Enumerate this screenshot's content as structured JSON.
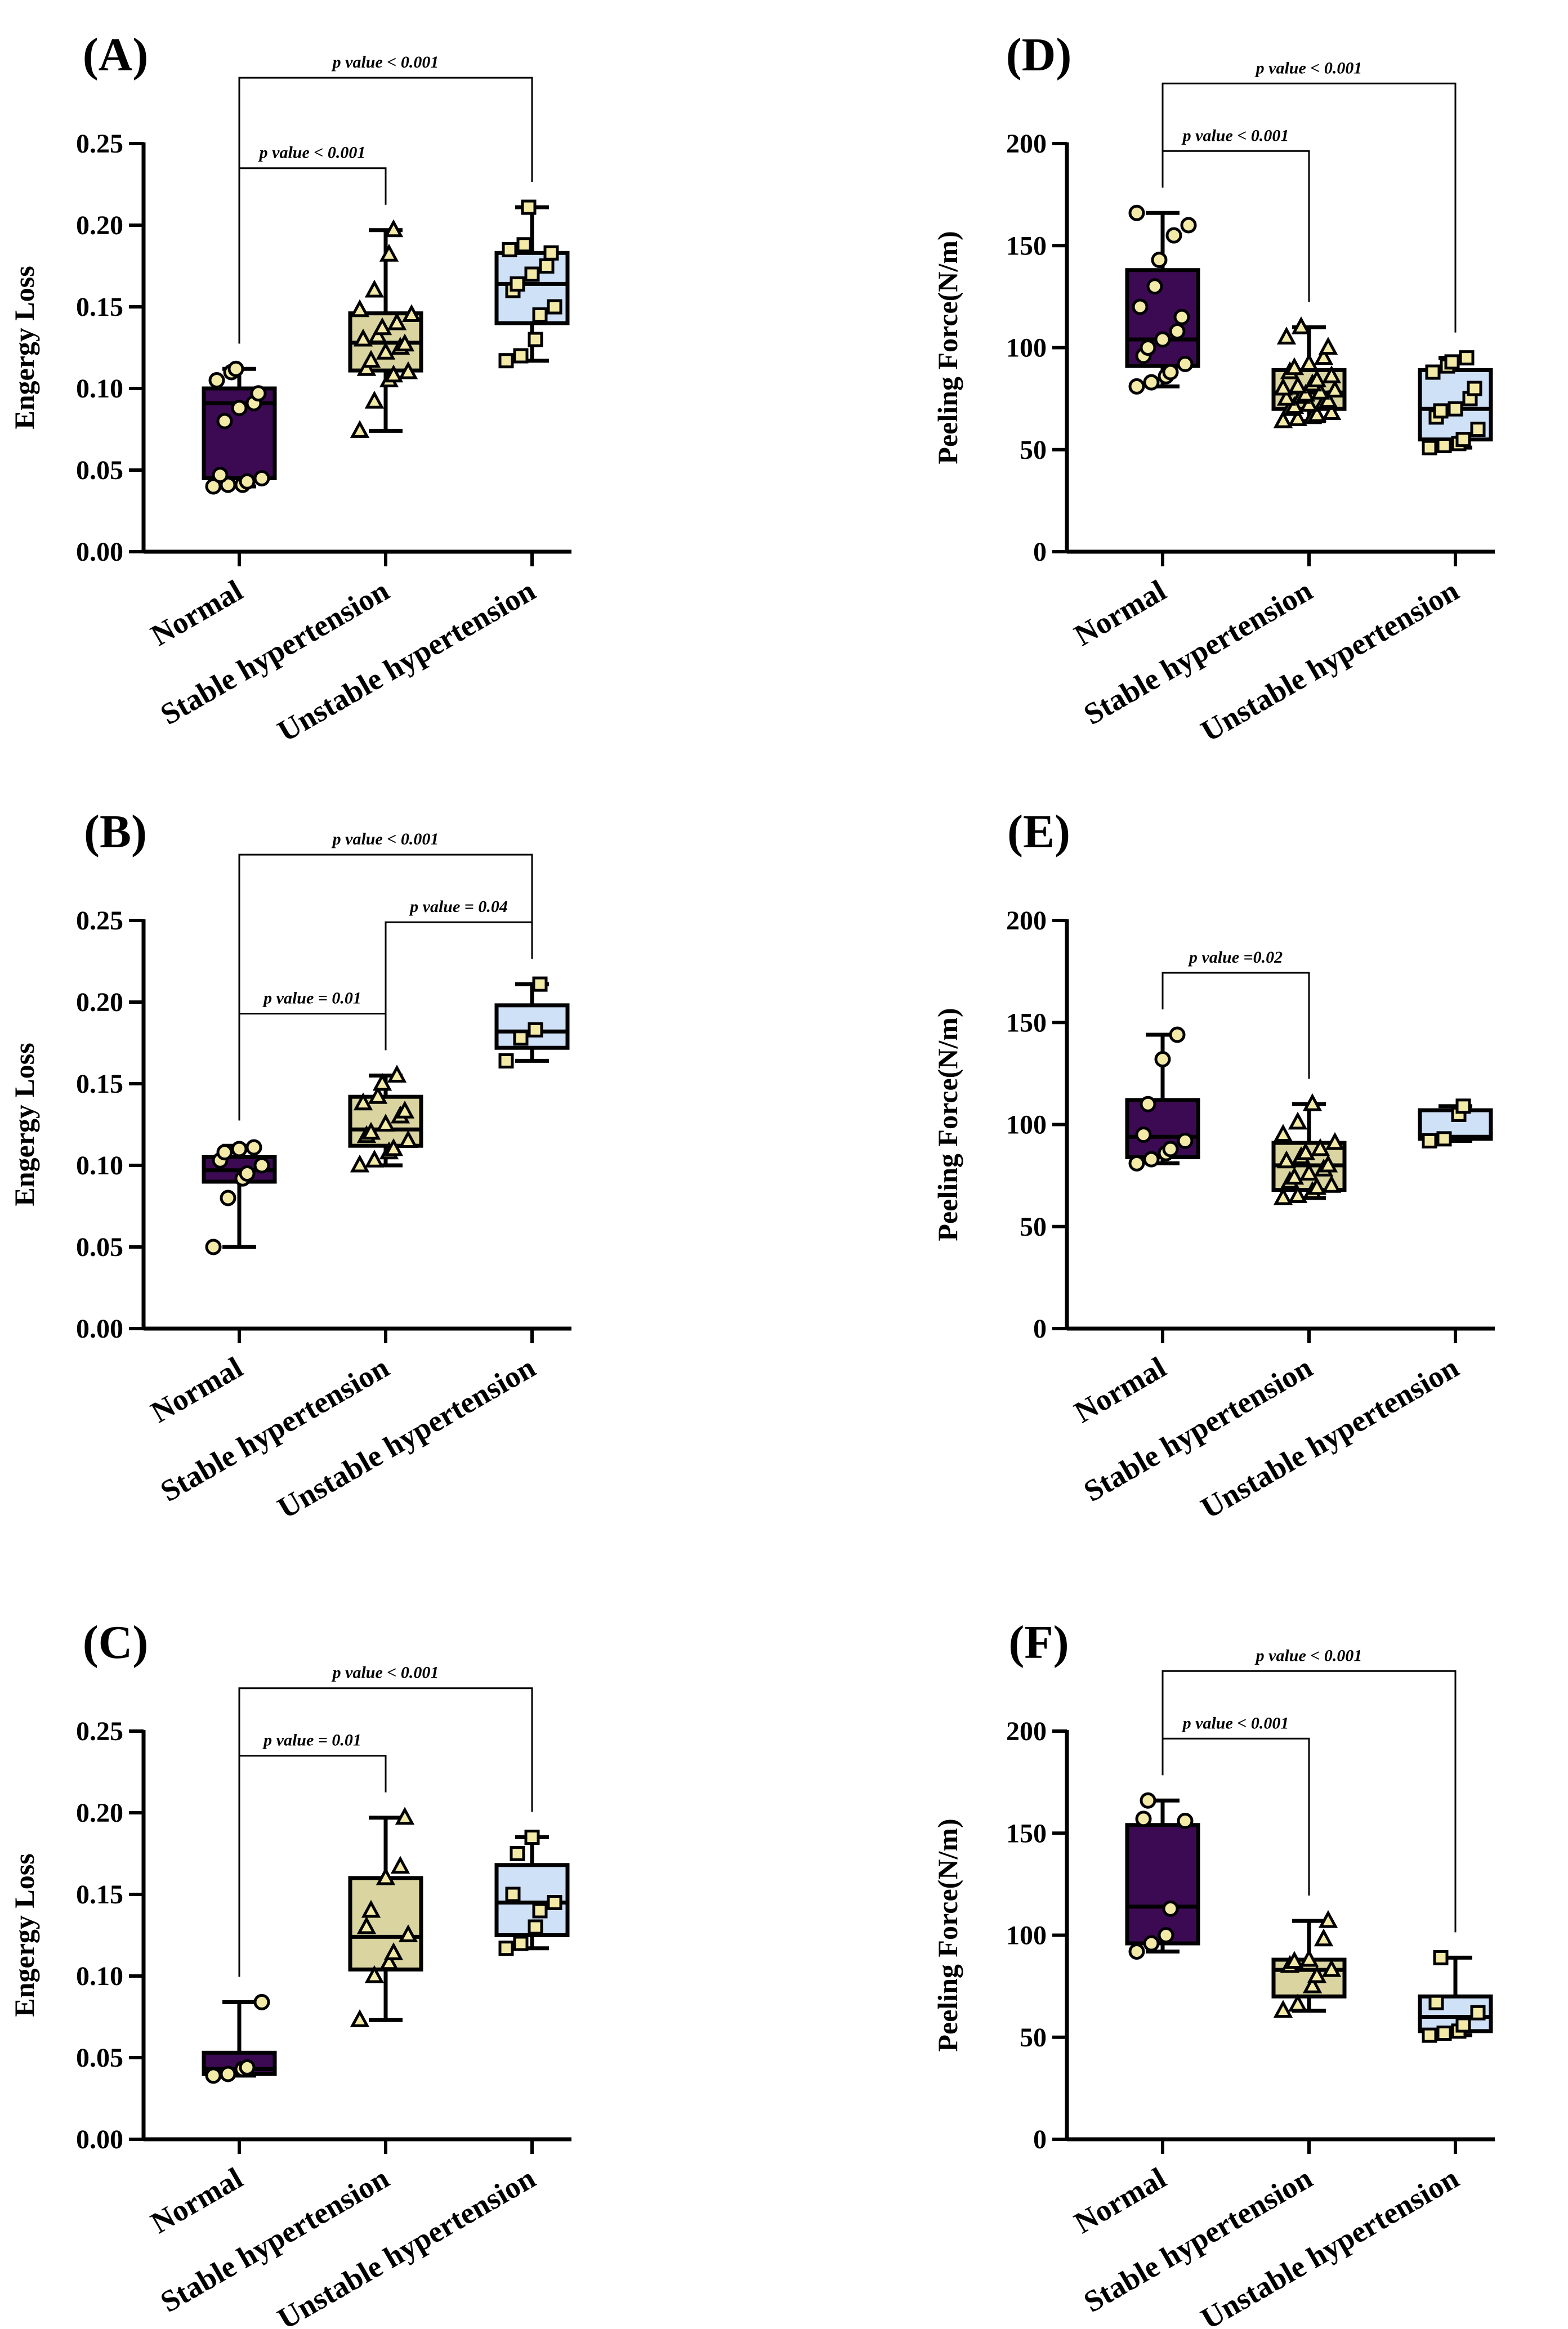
{
  "figure": {
    "group_colors": [
      "#3c0a52",
      "#d9d4a0",
      "#cfe1f7"
    ],
    "point_fill": "#f4eaa8",
    "point_shapes": [
      "circle",
      "triangle",
      "square"
    ]
  },
  "chart_data": [
    {
      "id": "A",
      "panel_label": "(A)",
      "type": "box",
      "ylabel": "Engergy Loss",
      "ylim": [
        0,
        0.25
      ],
      "ticks": [
        0,
        0.05,
        0.1,
        0.15,
        0.2,
        0.25
      ],
      "tick_labels": [
        "0.00",
        "0.05",
        "0.10",
        "0.15",
        "0.20",
        "0.25"
      ],
      "categories": [
        "Normal",
        "Stable hypertension",
        "Unstable hypertension"
      ],
      "boxes": [
        {
          "min": 0.04,
          "q1": 0.045,
          "median": 0.091,
          "q3": 0.1,
          "max": 0.112,
          "points": [
            0.04,
            0.041,
            0.041,
            0.043,
            0.045,
            0.047,
            0.08,
            0.088,
            0.091,
            0.097,
            0.105,
            0.11,
            0.112
          ]
        },
        {
          "min": 0.074,
          "q1": 0.111,
          "median": 0.128,
          "q3": 0.146,
          "max": 0.197,
          "points": [
            0.074,
            0.092,
            0.105,
            0.108,
            0.11,
            0.112,
            0.117,
            0.122,
            0.125,
            0.127,
            0.13,
            0.132,
            0.137,
            0.14,
            0.145,
            0.148,
            0.16,
            0.182,
            0.197
          ]
        },
        {
          "min": 0.117,
          "q1": 0.14,
          "median": 0.164,
          "q3": 0.183,
          "max": 0.211,
          "points": [
            0.117,
            0.12,
            0.13,
            0.145,
            0.15,
            0.16,
            0.164,
            0.17,
            0.175,
            0.183,
            0.185,
            0.188,
            0.211
          ]
        }
      ],
      "comparisons": [
        {
          "from": 0,
          "to": 1,
          "label": "p value < 0.001",
          "level": 0
        },
        {
          "from": 0,
          "to": 2,
          "label": "p value < 0.001",
          "level": 1
        }
      ]
    },
    {
      "id": "B",
      "panel_label": "(B)",
      "type": "box",
      "ylabel": "Engergy Loss",
      "ylim": [
        0,
        0.25
      ],
      "ticks": [
        0,
        0.05,
        0.1,
        0.15,
        0.2,
        0.25
      ],
      "tick_labels": [
        "0.00",
        "0.05",
        "0.10",
        "0.15",
        "0.20",
        "0.25"
      ],
      "categories": [
        "Normal",
        "Stable hypertension",
        "Unstable hypertension"
      ],
      "boxes": [
        {
          "min": 0.05,
          "q1": 0.09,
          "median": 0.097,
          "q3": 0.105,
          "max": 0.112,
          "points": [
            0.05,
            0.08,
            0.092,
            0.095,
            0.1,
            0.103,
            0.108,
            0.11,
            0.111
          ]
        },
        {
          "min": 0.1,
          "q1": 0.112,
          "median": 0.122,
          "q3": 0.142,
          "max": 0.155,
          "points": [
            0.1,
            0.103,
            0.108,
            0.11,
            0.115,
            0.118,
            0.12,
            0.125,
            0.13,
            0.133,
            0.138,
            0.142,
            0.15,
            0.155
          ]
        },
        {
          "min": 0.164,
          "q1": 0.172,
          "median": 0.182,
          "q3": 0.198,
          "max": 0.211,
          "points": [
            0.164,
            0.178,
            0.183,
            0.211
          ]
        }
      ],
      "comparisons": [
        {
          "from": 0,
          "to": 1,
          "label": "p value = 0.01",
          "level": 0
        },
        {
          "from": 1,
          "to": 2,
          "label": "p value = 0.04",
          "level": 0
        },
        {
          "from": 0,
          "to": 2,
          "label": "p value < 0.001",
          "level": 1
        }
      ]
    },
    {
      "id": "C",
      "panel_label": "(C)",
      "type": "box",
      "ylabel": "Engergy Loss",
      "ylim": [
        0,
        0.25
      ],
      "ticks": [
        0,
        0.05,
        0.1,
        0.15,
        0.2,
        0.25
      ],
      "tick_labels": [
        "0.00",
        "0.05",
        "0.10",
        "0.15",
        "0.20",
        "0.25"
      ],
      "categories": [
        "Normal",
        "Stable hypertension",
        "Unstable hypertension"
      ],
      "boxes": [
        {
          "min": 0.039,
          "q1": 0.04,
          "median": 0.043,
          "q3": 0.053,
          "max": 0.084,
          "points": [
            0.039,
            0.04,
            0.043,
            0.044,
            0.084
          ]
        },
        {
          "min": 0.073,
          "q1": 0.104,
          "median": 0.124,
          "q3": 0.16,
          "max": 0.197,
          "points": [
            0.073,
            0.1,
            0.108,
            0.114,
            0.125,
            0.13,
            0.14,
            0.16,
            0.167,
            0.197
          ]
        },
        {
          "min": 0.117,
          "q1": 0.125,
          "median": 0.145,
          "q3": 0.168,
          "max": 0.185,
          "points": [
            0.117,
            0.12,
            0.13,
            0.14,
            0.145,
            0.15,
            0.175,
            0.185
          ]
        }
      ],
      "comparisons": [
        {
          "from": 0,
          "to": 1,
          "label": "p value = 0.01",
          "level": 0
        },
        {
          "from": 0,
          "to": 2,
          "label": "p value < 0.001",
          "level": 1
        }
      ]
    },
    {
      "id": "D",
      "panel_label": "(D)",
      "type": "box",
      "ylabel": "Peeling Force(N/m)",
      "ylim": [
        0,
        200
      ],
      "ticks": [
        0,
        50,
        100,
        150,
        200
      ],
      "tick_labels": [
        "0",
        "50",
        "100",
        "150",
        "200"
      ],
      "categories": [
        "Normal",
        "Stable hypertension",
        "Unstable hypertension"
      ],
      "boxes": [
        {
          "min": 81,
          "q1": 91,
          "median": 104,
          "q3": 138,
          "max": 166,
          "points": [
            81,
            83,
            86,
            88,
            92,
            96,
            100,
            104,
            108,
            115,
            120,
            130,
            143,
            155,
            160,
            166
          ]
        },
        {
          "min": 64,
          "q1": 70,
          "median": 78,
          "q3": 89,
          "max": 110,
          "points": [
            64,
            65,
            66,
            67,
            68,
            70,
            71,
            72,
            73,
            74,
            75,
            76,
            77,
            78,
            79,
            80,
            81,
            82,
            84,
            86,
            88,
            90,
            92,
            95,
            100,
            105,
            110
          ]
        },
        {
          "min": 51,
          "q1": 55,
          "median": 70,
          "q3": 89,
          "max": 95,
          "points": [
            51,
            52,
            53,
            55,
            60,
            66,
            69,
            70,
            75,
            80,
            88,
            91,
            93,
            95
          ]
        }
      ],
      "comparisons": [
        {
          "from": 0,
          "to": 1,
          "label": "p value < 0.001",
          "level": 0
        },
        {
          "from": 0,
          "to": 2,
          "label": "p value < 0.001",
          "level": 1
        }
      ]
    },
    {
      "id": "E",
      "panel_label": "(E)",
      "type": "box",
      "ylabel": "Peeling Force(N/m)",
      "ylim": [
        0,
        200
      ],
      "ticks": [
        0,
        50,
        100,
        150,
        200
      ],
      "tick_labels": [
        "0",
        "50",
        "100",
        "150",
        "200"
      ],
      "categories": [
        "Normal",
        "Stable hypertension",
        "Unstable hypertension"
      ],
      "boxes": [
        {
          "min": 81,
          "q1": 84,
          "median": 94,
          "q3": 112,
          "max": 144,
          "points": [
            81,
            83,
            86,
            88,
            92,
            95,
            110,
            132,
            144
          ]
        },
        {
          "min": 64,
          "q1": 68,
          "median": 80,
          "q3": 91,
          "max": 110,
          "points": [
            64,
            65,
            67,
            69,
            70,
            72,
            74,
            76,
            78,
            80,
            82,
            84,
            86,
            88,
            91,
            95,
            101,
            110
          ]
        },
        {
          "min": 92,
          "q1": 93,
          "median": 94,
          "q3": 107,
          "max": 109,
          "points": [
            92,
            93,
            105,
            109
          ]
        }
      ],
      "comparisons": [
        {
          "from": 0,
          "to": 1,
          "label": "p value =0.02",
          "level": 0
        }
      ]
    },
    {
      "id": "F",
      "panel_label": "(F)",
      "type": "box",
      "ylabel": "Peeling Force(N/m)",
      "ylim": [
        0,
        200
      ],
      "ticks": [
        0,
        50,
        100,
        150,
        200
      ],
      "tick_labels": [
        "0",
        "50",
        "100",
        "150",
        "200"
      ],
      "categories": [
        "Normal",
        "Stable hypertension",
        "Unstable hypertension"
      ],
      "boxes": [
        {
          "min": 92,
          "q1": 96,
          "median": 114,
          "q3": 154,
          "max": 166,
          "points": [
            92,
            96,
            100,
            113,
            156,
            157,
            166
          ]
        },
        {
          "min": 63,
          "q1": 70,
          "median": 83,
          "q3": 88,
          "max": 107,
          "points": [
            63,
            66,
            75,
            80,
            83,
            85,
            87,
            88,
            98,
            107
          ]
        },
        {
          "min": 51,
          "q1": 53,
          "median": 60,
          "q3": 70,
          "max": 89,
          "points": [
            51,
            52,
            53,
            56,
            62,
            67,
            89
          ]
        }
      ],
      "comparisons": [
        {
          "from": 0,
          "to": 1,
          "label": "p value < 0.001",
          "level": 0
        },
        {
          "from": 0,
          "to": 2,
          "label": "p value < 0.001",
          "level": 1
        }
      ]
    }
  ]
}
